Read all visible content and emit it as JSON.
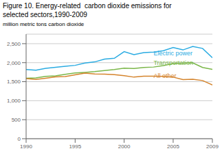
{
  "chart_data": {
    "type": "line",
    "title": "Figure 10. Energy-related  carbon dioxide emissions for\nselected sectors,1990-2009",
    "y_label": "million metric tons carbon dioxide",
    "x": [
      1990,
      1991,
      1992,
      1993,
      1994,
      1995,
      1996,
      1997,
      1998,
      1999,
      2000,
      2001,
      2002,
      2003,
      2004,
      2005,
      2006,
      2007,
      2008,
      2009
    ],
    "series": [
      {
        "name": "Electric power",
        "color": "#29ABE2",
        "values": [
          1820,
          1800,
          1850,
          1880,
          1905,
          1930,
          1990,
          2020,
          2095,
          2115,
          2290,
          2210,
          2265,
          2280,
          2315,
          2400,
          2335,
          2425,
          2375,
          2130
        ]
      },
      {
        "name": "Transportation",
        "color": "#7AB648",
        "values": [
          1590,
          1600,
          1640,
          1655,
          1695,
          1730,
          1745,
          1765,
          1795,
          1820,
          1855,
          1845,
          1875,
          1885,
          1925,
          1975,
          1985,
          1995,
          1875,
          1825
        ]
      },
      {
        "name": "All other",
        "color": "#D4832B",
        "values": [
          1580,
          1560,
          1590,
          1625,
          1635,
          1680,
          1725,
          1705,
          1700,
          1685,
          1660,
          1620,
          1645,
          1645,
          1640,
          1620,
          1555,
          1565,
          1530,
          1415
        ]
      }
    ],
    "annotations": [
      {
        "text": "Electric power",
        "x": 2003,
        "y": 2155,
        "color": "#29ABE2"
      },
      {
        "text": "Transportation",
        "x": 2003,
        "y": 1905,
        "color": "#7AB648"
      },
      {
        "text": "All other",
        "x": 2003,
        "y": 1555,
        "color": "#D4832B"
      }
    ],
    "xlim": [
      1990,
      2009
    ],
    "xticks": [
      1990,
      1995,
      2000,
      2005,
      2009
    ],
    "ylim": [
      0,
      2750
    ],
    "yticks": [
      0,
      500,
      {
        "value": 1000,
        "label": "1,000"
      },
      {
        "value": 1500,
        "label": "1,500"
      },
      {
        "value": 2000,
        "label": "2,000"
      },
      {
        "value": 2500,
        "label": "2,500"
      }
    ],
    "grid": "y"
  }
}
